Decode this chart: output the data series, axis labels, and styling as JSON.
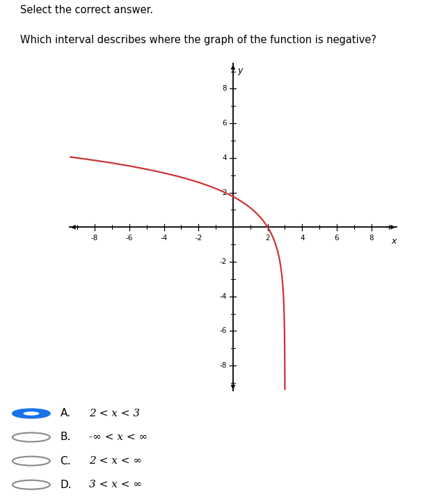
{
  "title_line1": "Select the correct answer.",
  "title_line2": "Which interval describes where the graph of the function is negative?",
  "xlim": [
    -9.5,
    9.5
  ],
  "ylim": [
    -9.5,
    9.5
  ],
  "xticks": [
    -8,
    -6,
    -4,
    -2,
    2,
    4,
    6,
    8
  ],
  "yticks": [
    -8,
    -6,
    -4,
    -2,
    2,
    4,
    6,
    8
  ],
  "curve_color": "#cc3333",
  "plot_bg": "#dcdcdc",
  "grid_minor_color": "#c8c8c8",
  "grid_major_color": "#c0c0c0",
  "answers": [
    {
      "label": "A.",
      "text": "2 < x < 3",
      "selected": true
    },
    {
      "label": "B.",
      "text": "-∞ < x < ∞",
      "selected": false
    },
    {
      "label": "C.",
      "text": "2 < x < ∞",
      "selected": false
    },
    {
      "label": "D.",
      "text": "3 < x < ∞",
      "selected": false
    }
  ],
  "vertical_asymptote": 3.0,
  "radio_selected_color": "#1a73e8",
  "radio_unselected_color": "#888888"
}
